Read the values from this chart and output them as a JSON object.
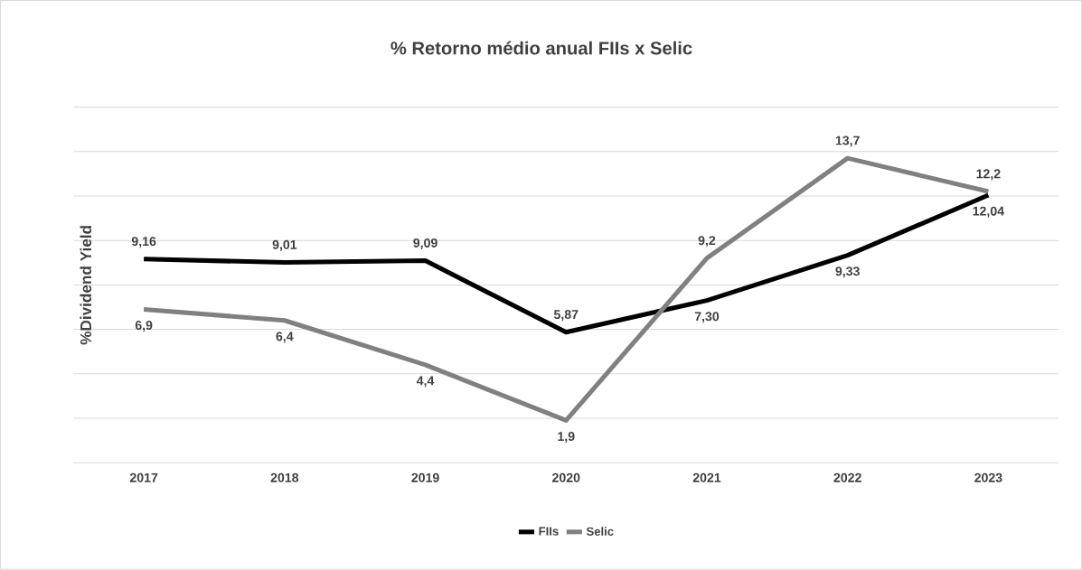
{
  "chart_data": {
    "type": "line",
    "title": "% Retorno médio anual FIIs x Selic",
    "ylabel": "%Dividend Yield",
    "categories": [
      "2017",
      "2018",
      "2019",
      "2020",
      "2021",
      "2022",
      "2023"
    ],
    "series": [
      {
        "name": "FIIs",
        "color": "#000000",
        "values": [
          9.16,
          9.01,
          9.09,
          5.87,
          7.3,
          9.33,
          12.04
        ],
        "value_labels": [
          "9,16",
          "9,01",
          "9,09",
          "5,87",
          "7,30",
          "9,33",
          "12,04"
        ]
      },
      {
        "name": "Selic",
        "color": "#808080",
        "values": [
          6.9,
          6.4,
          4.4,
          1.9,
          9.2,
          13.7,
          12.2
        ],
        "value_labels": [
          "6,9",
          "6,4",
          "4,4",
          "1,9",
          "9,2",
          "13,7",
          "12,2"
        ]
      }
    ],
    "ylim": [
      0,
      16
    ],
    "yticks": [
      {
        "value": 0,
        "label": null
      },
      {
        "value": 2,
        "label": null
      },
      {
        "value": 4,
        "label": null
      },
      {
        "value": 6,
        "label": null
      },
      {
        "value": 8,
        "label": null
      },
      {
        "value": 10,
        "label": null
      },
      {
        "value": 12,
        "label": null
      },
      {
        "value": 14,
        "label": null
      },
      {
        "value": 16,
        "label": null
      }
    ],
    "tick_labels": "x",
    "grid": "y",
    "legend": "bottom",
    "marker": "none",
    "line_style": "solid"
  }
}
